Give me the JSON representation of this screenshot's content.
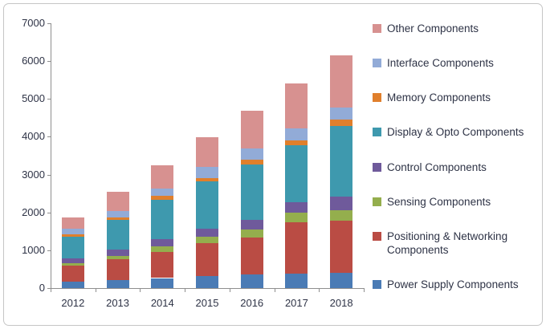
{
  "chart": {
    "background": "#FFFFFF",
    "border_color": "#C6C6C6",
    "axis_color": "#8E8E8E",
    "tick_label_color": "#2E3346",
    "legend_text_color": "#2E3346"
  },
  "chart_data": {
    "type": "bar",
    "stacked": true,
    "title": "",
    "xlabel": "",
    "ylabel": "",
    "grid": false,
    "legend_position": "right",
    "ylim": [
      0,
      7000
    ],
    "yticks": [
      0,
      1000,
      2000,
      3000,
      4000,
      5000,
      6000,
      7000
    ],
    "categories": [
      "2012",
      "2013",
      "2014",
      "2015",
      "2016",
      "2017",
      "2018"
    ],
    "series": [
      {
        "name": "Power Supply Components",
        "color": "#4A7BB5",
        "values": [
          160,
          220,
          265,
          320,
          360,
          375,
          410
        ]
      },
      {
        "name": "Positioning & Networking Components",
        "color": "#BA4C44",
        "values": [
          425,
          545,
          695,
          860,
          985,
          1355,
          1375
        ]
      },
      {
        "name": "Sensing Components",
        "color": "#94AE4D",
        "values": [
          70,
          85,
          135,
          170,
          210,
          255,
          280
        ]
      },
      {
        "name": "Control Components",
        "color": "#6F5A9B",
        "values": [
          140,
          175,
          200,
          210,
          240,
          295,
          355
        ]
      },
      {
        "name": "Display & Opto Components",
        "color": "#3E99AE",
        "values": [
          560,
          775,
          1045,
          1255,
          1470,
          1500,
          1855
        ]
      },
      {
        "name": "Memory Components",
        "color": "#E07F2C",
        "values": [
          70,
          70,
          100,
          85,
          125,
          125,
          170
        ]
      },
      {
        "name": "Interface Components",
        "color": "#92ABD7",
        "values": [
          140,
          160,
          180,
          305,
          300,
          310,
          325
        ]
      },
      {
        "name": "Other Components",
        "color": "#D79190",
        "values": [
          300,
          515,
          635,
          775,
          990,
          1185,
          1390
        ]
      }
    ],
    "totals": [
      1865,
      2545,
      3255,
      3980,
      4680,
      5400,
      6160
    ],
    "legend_order_top_to_bottom": [
      "Other Components",
      "Interface Components",
      "Memory Components",
      "Display & Opto Components",
      "Control Components",
      "Sensing Components",
      "Positioning & Networking Components",
      "Power Supply Components"
    ]
  }
}
